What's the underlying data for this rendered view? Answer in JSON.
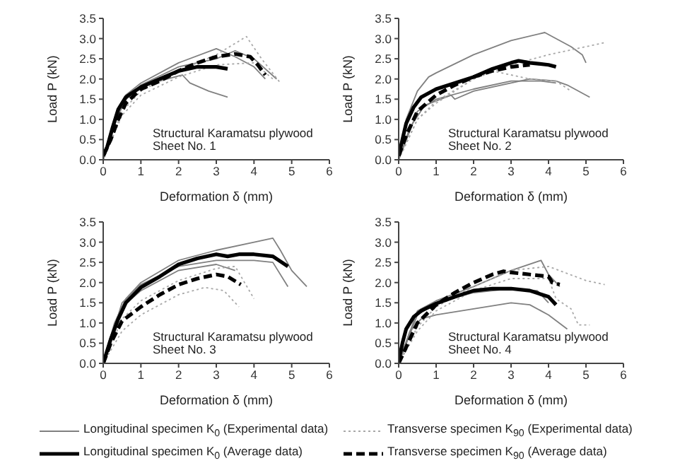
{
  "chart_data": [
    {
      "type": "line",
      "xlabel": "Deformation δ (mm)",
      "ylabel": "Load P (kN)",
      "annotations": [
        "Structural Karamatsu plywood\nSheet No. 1"
      ],
      "xlim": [
        0,
        6
      ],
      "xticks": [
        0,
        1,
        2,
        3,
        4,
        5,
        6
      ],
      "ylim": [
        0,
        3.5
      ],
      "yticks": [
        {
          "value": 0,
          "label": "0.0"
        },
        0.5,
        {
          "value": 1,
          "label": "1.0"
        },
        1.5,
        {
          "value": 2,
          "label": "2.0"
        },
        2.5,
        {
          "value": 3,
          "label": "3.0"
        },
        3.5
      ],
      "grid": false,
      "legend": "bottom",
      "marker": "none",
      "series": [
        {
          "name": "Longitudinal specimen K$_{0}$ (Experimental data)",
          "color": "#808080",
          "line_style": "solid",
          "x": [
            0,
            0.3,
            0.6,
            1,
            1.5,
            2.1,
            2.3,
            2.8,
            3.3
          ],
          "values": [
            0,
            0.9,
            1.5,
            1.8,
            1.95,
            2.1,
            1.9,
            1.7,
            1.55
          ]
        },
        {
          "color": "#808080",
          "line_style": "solid",
          "x": [
            0,
            0.3,
            0.6,
            1,
            2,
            3,
            3.5,
            4,
            4.3
          ],
          "values": [
            0,
            1.0,
            1.6,
            1.9,
            2.4,
            2.75,
            2.55,
            2.3,
            2.0
          ]
        },
        {
          "color": "#808080",
          "line_style": "solid",
          "x": [
            0,
            0.5,
            1,
            2,
            3,
            3.5,
            4,
            4.6
          ],
          "values": [
            0,
            1.4,
            1.85,
            2.3,
            2.5,
            2.7,
            2.5,
            2.0
          ]
        },
        {
          "name": "Transverse specimen K$_{90}$ (Experimental data)",
          "color": "#a8a8a8",
          "line_style": "dotted",
          "x": [
            0,
            0.5,
            1,
            2,
            3,
            3.8,
            4.2,
            4.7
          ],
          "values": [
            0,
            1.2,
            1.7,
            2.2,
            2.6,
            3.05,
            2.5,
            1.9
          ]
        },
        {
          "color": "#a8a8a8",
          "line_style": "dotted",
          "x": [
            0,
            0.5,
            1,
            2,
            3,
            4,
            4.5
          ],
          "values": [
            0,
            1.1,
            1.6,
            2.05,
            2.35,
            2.4,
            2.0
          ]
        },
        {
          "name": "Longitudinal specimen K$_{0}$ (Average data)",
          "color": "#000000",
          "line_style": "solid",
          "x": [
            0,
            0.1,
            0.25,
            0.4,
            0.6,
            1,
            1.5,
            2,
            2.5,
            3,
            3.3
          ],
          "values": [
            0.1,
            0.3,
            0.8,
            1.25,
            1.55,
            1.8,
            2.0,
            2.2,
            2.3,
            2.3,
            2.25
          ]
        },
        {
          "name": "Transverse specimen K$_{90}$ (Average data)",
          "color": "#000000",
          "line_style": "dashed",
          "x": [
            0,
            0.2,
            0.4,
            0.6,
            1,
            1.5,
            2,
            2.5,
            3,
            3.5,
            3.9,
            4.1,
            4.3
          ],
          "values": [
            0.1,
            0.5,
            1.0,
            1.4,
            1.75,
            1.95,
            2.2,
            2.4,
            2.55,
            2.62,
            2.55,
            2.35,
            2.1
          ]
        }
      ]
    },
    {
      "type": "line",
      "xlabel": "Deformation δ (mm)",
      "ylabel": "Load P (kN)",
      "annotations": [
        "Structural Karamatsu plywood\nSheet No. 2"
      ],
      "xlim": [
        0,
        6
      ],
      "xticks": [
        0,
        1,
        2,
        3,
        4,
        5,
        6
      ],
      "ylim": [
        0,
        3.5
      ],
      "yticks": [
        {
          "value": 0,
          "label": "0.0"
        },
        0.5,
        {
          "value": 1,
          "label": "1.0"
        },
        1.5,
        {
          "value": 2,
          "label": "2.0"
        },
        2.5,
        {
          "value": 3,
          "label": "3.0"
        },
        3.5
      ],
      "grid": false,
      "marker": "none",
      "series": [
        {
          "color": "#808080",
          "line_style": "solid",
          "x": [
            0,
            0.2,
            0.5,
            0.8,
            1,
            2,
            3,
            3.9,
            4.6,
            4.9,
            5
          ],
          "values": [
            0,
            1.0,
            1.7,
            2.05,
            2.15,
            2.6,
            2.95,
            3.15,
            2.8,
            2.6,
            2.4
          ]
        },
        {
          "color": "#808080",
          "line_style": "solid",
          "x": [
            0,
            0.3,
            0.7,
            1.4,
            1.5,
            2,
            3,
            3.5,
            4.2,
            4.5,
            5.1
          ],
          "values": [
            0,
            0.8,
            1.35,
            1.6,
            1.5,
            1.7,
            1.9,
            2.0,
            1.95,
            1.85,
            1.55
          ]
        },
        {
          "color": "#808080",
          "line_style": "solid",
          "x": [
            0,
            0.5,
            1,
            2,
            3,
            3.8,
            4.2
          ],
          "values": [
            0,
            1.2,
            1.5,
            1.75,
            1.95,
            1.95,
            1.9
          ]
        },
        {
          "color": "#a8a8a8",
          "line_style": "dotted",
          "x": [
            0,
            0.5,
            1,
            2,
            3,
            4,
            5,
            5.5
          ],
          "values": [
            0,
            1.0,
            1.45,
            2.0,
            2.35,
            2.6,
            2.8,
            2.9
          ]
        },
        {
          "color": "#a8a8a8",
          "line_style": "dotted",
          "x": [
            0,
            0.5,
            1,
            2,
            2.5,
            3,
            3.5,
            4.2,
            4.6
          ],
          "values": [
            0,
            1.0,
            1.4,
            2.0,
            2.2,
            2.1,
            2.0,
            1.95,
            1.7
          ]
        },
        {
          "color": "#000000",
          "line_style": "solid",
          "x": [
            0,
            0.1,
            0.2,
            0.4,
            0.6,
            1,
            1.5,
            2,
            2.5,
            3,
            3.2,
            3.5,
            4,
            4.2
          ],
          "values": [
            0.1,
            0.5,
            0.9,
            1.3,
            1.55,
            1.75,
            1.9,
            2.05,
            2.25,
            2.4,
            2.45,
            2.4,
            2.35,
            2.3
          ]
        },
        {
          "color": "#000000",
          "line_style": "dashed",
          "x": [
            0,
            0.2,
            0.5,
            1,
            1.5,
            2,
            2.5,
            3,
            3.5
          ],
          "values": [
            0.1,
            0.6,
            1.2,
            1.6,
            1.85,
            2.05,
            2.2,
            2.3,
            2.35
          ]
        }
      ]
    },
    {
      "type": "line",
      "xlabel": "Deformation δ (mm)",
      "ylabel": "Load P (kN)",
      "annotations": [
        "Structural Karamatsu plywood\nSheet No. 3"
      ],
      "xlim": [
        0,
        6
      ],
      "xticks": [
        0,
        1,
        2,
        3,
        4,
        5,
        6
      ],
      "ylim": [
        0,
        3.5
      ],
      "yticks": [
        {
          "value": 0,
          "label": "0.0"
        },
        0.5,
        {
          "value": 1,
          "label": "1.0"
        },
        1.5,
        {
          "value": 2,
          "label": "2.0"
        },
        2.5,
        {
          "value": 3,
          "label": "3.0"
        },
        3.5
      ],
      "grid": false,
      "marker": "none",
      "series": [
        {
          "color": "#808080",
          "line_style": "solid",
          "x": [
            0,
            0.3,
            0.6,
            1,
            2,
            3,
            4,
            4.5,
            4.7,
            5,
            5.4
          ],
          "values": [
            0,
            1.0,
            1.6,
            2.0,
            2.55,
            2.8,
            3.0,
            3.1,
            2.8,
            2.3,
            1.9
          ]
        },
        {
          "color": "#808080",
          "line_style": "solid",
          "x": [
            0,
            0.5,
            1,
            2,
            3,
            4,
            4.5,
            4.9
          ],
          "values": [
            0,
            1.5,
            1.95,
            2.4,
            2.55,
            2.55,
            2.5,
            1.9
          ]
        },
        {
          "color": "#808080",
          "line_style": "solid",
          "x": [
            0,
            0.5,
            1,
            2,
            3,
            3.5
          ],
          "values": [
            0,
            1.4,
            1.8,
            2.3,
            2.45,
            2.3
          ]
        },
        {
          "color": "#a8a8a8",
          "line_style": "dotted",
          "x": [
            0,
            0.5,
            1,
            2,
            2.7,
            3.2,
            3.6
          ],
          "values": [
            0,
            0.8,
            1.2,
            1.7,
            1.88,
            1.8,
            1.4
          ]
        },
        {
          "color": "#a8a8a8",
          "line_style": "dotted",
          "x": [
            0,
            0.5,
            1,
            2,
            3,
            3.5,
            4
          ],
          "values": [
            0,
            1.1,
            1.55,
            2.05,
            2.35,
            2.4,
            1.6
          ]
        },
        {
          "color": "#000000",
          "line_style": "solid",
          "x": [
            0,
            0.2,
            0.4,
            0.6,
            1,
            1.5,
            2,
            2.5,
            3,
            3.3,
            3.6,
            4,
            4.5,
            4.9
          ],
          "values": [
            0,
            0.6,
            1.1,
            1.5,
            1.88,
            2.15,
            2.45,
            2.6,
            2.7,
            2.65,
            2.7,
            2.7,
            2.65,
            2.4
          ]
        },
        {
          "color": "#000000",
          "line_style": "dashed",
          "x": [
            0,
            0.2,
            0.5,
            1,
            1.5,
            2,
            2.5,
            3,
            3.3,
            3.65
          ],
          "values": [
            0,
            0.5,
            1.05,
            1.4,
            1.7,
            1.95,
            2.1,
            2.2,
            2.15,
            1.95
          ]
        }
      ]
    },
    {
      "type": "line",
      "xlabel": "Deformation δ (mm)",
      "ylabel": "Load P (kN)",
      "annotations": [
        "Structural Karamatsu plywood\nSheet No. 4"
      ],
      "xlim": [
        0,
        6
      ],
      "xticks": [
        0,
        1,
        2,
        3,
        4,
        5,
        6
      ],
      "ylim": [
        0,
        3.5
      ],
      "yticks": [
        {
          "value": 0,
          "label": "0.0"
        },
        0.5,
        {
          "value": 1,
          "label": "1.0"
        },
        1.5,
        {
          "value": 2,
          "label": "2.0"
        },
        2.5,
        {
          "value": 3,
          "label": "3.0"
        },
        3.5
      ],
      "grid": false,
      "marker": "none",
      "series": [
        {
          "color": "#808080",
          "line_style": "solid",
          "x": [
            0,
            0.3,
            0.6,
            1,
            2,
            3,
            3.5,
            4,
            4.5
          ],
          "values": [
            0,
            0.8,
            1.1,
            1.2,
            1.35,
            1.5,
            1.45,
            1.2,
            0.85
          ]
        },
        {
          "color": "#808080",
          "line_style": "solid",
          "x": [
            0,
            0.5,
            1,
            2,
            3,
            3.8,
            4,
            4.3
          ],
          "values": [
            0,
            1.3,
            1.55,
            1.9,
            2.3,
            2.55,
            2.2,
            1.9
          ]
        },
        {
          "color": "#808080",
          "line_style": "solid",
          "x": [
            0,
            0.5,
            1,
            2,
            3,
            3.7,
            4
          ],
          "values": [
            0,
            1.2,
            1.5,
            1.75,
            1.85,
            1.8,
            1.5
          ]
        },
        {
          "color": "#a8a8a8",
          "line_style": "dotted",
          "x": [
            0,
            0.5,
            1,
            2,
            3,
            4,
            5,
            5.5
          ],
          "values": [
            0,
            0.9,
            1.4,
            1.9,
            2.3,
            2.4,
            2.05,
            1.95
          ]
        },
        {
          "color": "#a8a8a8",
          "line_style": "dotted",
          "x": [
            0,
            0.5,
            1,
            2,
            3,
            4,
            4.2,
            4.6,
            4.8,
            5.1
          ],
          "values": [
            0,
            0.8,
            1.3,
            1.8,
            2.1,
            2.1,
            1.6,
            1.35,
            0.95,
            0.95
          ]
        },
        {
          "color": "#000000",
          "line_style": "solid",
          "x": [
            0,
            0.1,
            0.2,
            0.4,
            0.6,
            1,
            1.5,
            2,
            2.5,
            3,
            3.5,
            4,
            4.2
          ],
          "values": [
            0.05,
            0.5,
            0.85,
            1.15,
            1.3,
            1.48,
            1.65,
            1.8,
            1.85,
            1.85,
            1.8,
            1.65,
            1.45
          ]
        },
        {
          "color": "#000000",
          "line_style": "dashed",
          "x": [
            0,
            0.2,
            0.5,
            1,
            1.5,
            2,
            2.5,
            2.8,
            3,
            3.5,
            4,
            4.1,
            4.3
          ],
          "values": [
            0,
            0.4,
            1.0,
            1.45,
            1.75,
            2.0,
            2.2,
            2.28,
            2.25,
            2.2,
            2.15,
            2.0,
            1.95
          ]
        }
      ]
    }
  ]
}
